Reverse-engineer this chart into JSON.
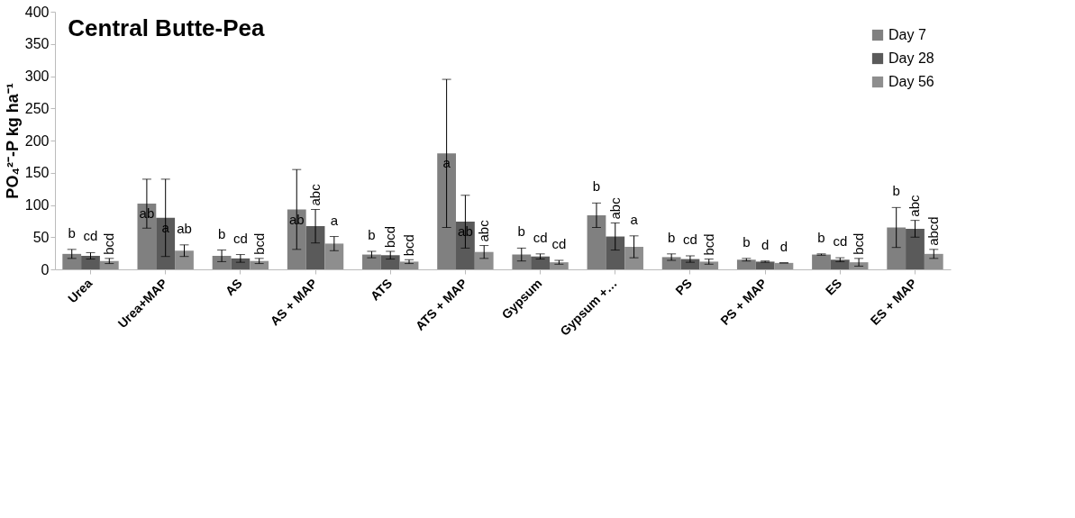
{
  "chart_data": {
    "type": "bar",
    "title": "Central Butte-Pea",
    "ylabel": "PO₄²⁻-P kg ha⁻¹",
    "categories": [
      "Urea",
      "Urea+MAP",
      "AS",
      "AS + MAP",
      "ATS",
      "ATS + MAP",
      "Gypsum",
      "Gypsum +…",
      "PS",
      "PS + MAP",
      "ES",
      "ES + MAP"
    ],
    "series": [
      {
        "name": "Day 7",
        "color": "#808080",
        "values": [
          24,
          102,
          21,
          93,
          23,
          180,
          23,
          84,
          19,
          15,
          23,
          65
        ],
        "errors": [
          7,
          38,
          9,
          62,
          5,
          115,
          10,
          19,
          5,
          2,
          1,
          31
        ],
        "value_labels": [
          "b",
          "ab",
          "b",
          "ab",
          "b",
          "a",
          "b",
          "b",
          "b",
          "b",
          "b",
          "b"
        ]
      },
      {
        "name": "Day 28",
        "color": "#5a5a5a",
        "values": [
          21,
          80,
          17,
          67,
          22,
          74,
          20,
          51,
          16,
          12,
          15,
          63
        ],
        "errors": [
          5,
          60,
          6,
          26,
          6,
          41,
          4,
          21,
          5,
          1,
          3,
          13
        ],
        "value_labels": [
          "cd",
          "a",
          "cd",
          "abc",
          "bcd",
          "ab",
          "cd",
          "abc",
          "cd",
          "d",
          "cd",
          "abc"
        ]
      },
      {
        "name": "Day 56",
        "color": "#8e8e8e",
        "values": [
          13,
          29,
          13,
          40,
          12,
          27,
          11,
          35,
          12,
          10,
          11,
          24
        ],
        "errors": [
          4,
          9,
          4,
          11,
          3,
          10,
          3,
          17,
          4,
          0,
          6,
          7
        ],
        "value_labels": [
          "bcd",
          "ab",
          "bcd",
          "a",
          "bcd",
          "abc",
          "cd",
          "a",
          "bcd",
          "d",
          "bcd",
          "abcd"
        ]
      }
    ],
    "ylim": [
      0,
      400
    ],
    "yticks": [
      0,
      50,
      100,
      150,
      200,
      250,
      300,
      350,
      400
    ],
    "grid": false,
    "legend": "top right"
  }
}
